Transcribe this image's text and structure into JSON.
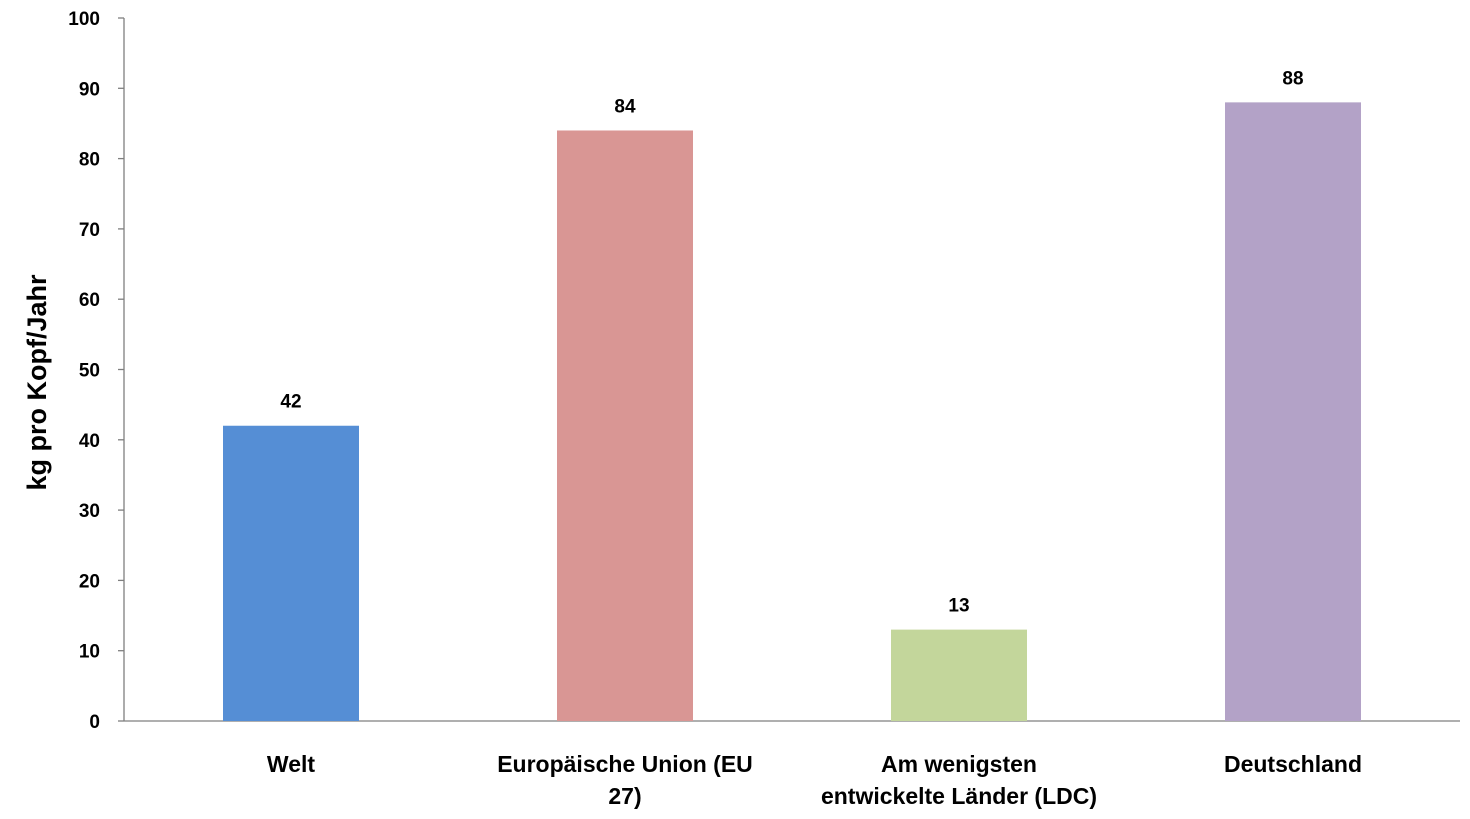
{
  "chart_data": {
    "type": "bar",
    "title": "",
    "xlabel": "",
    "ylabel": "kg pro Kopf/Jahr",
    "ylim": [
      0,
      100
    ],
    "yticks": [
      0,
      10,
      20,
      30,
      40,
      50,
      60,
      70,
      80,
      90,
      100
    ],
    "grid": false,
    "legend": "none",
    "categories": [
      [
        "Welt"
      ],
      [
        "Europäische Union (EU",
        "27)"
      ],
      [
        "Am wenigsten",
        "entwickelte Länder (LDC)"
      ],
      [
        "Deutschland"
      ]
    ],
    "values": [
      42,
      84,
      13,
      88
    ],
    "data_labels": [
      "42",
      "84",
      "13",
      "88"
    ],
    "colors": [
      "#558ed5",
      "#d99694",
      "#c3d69b",
      "#b3a2c7"
    ],
    "axis_color": "#7f7f7f"
  }
}
